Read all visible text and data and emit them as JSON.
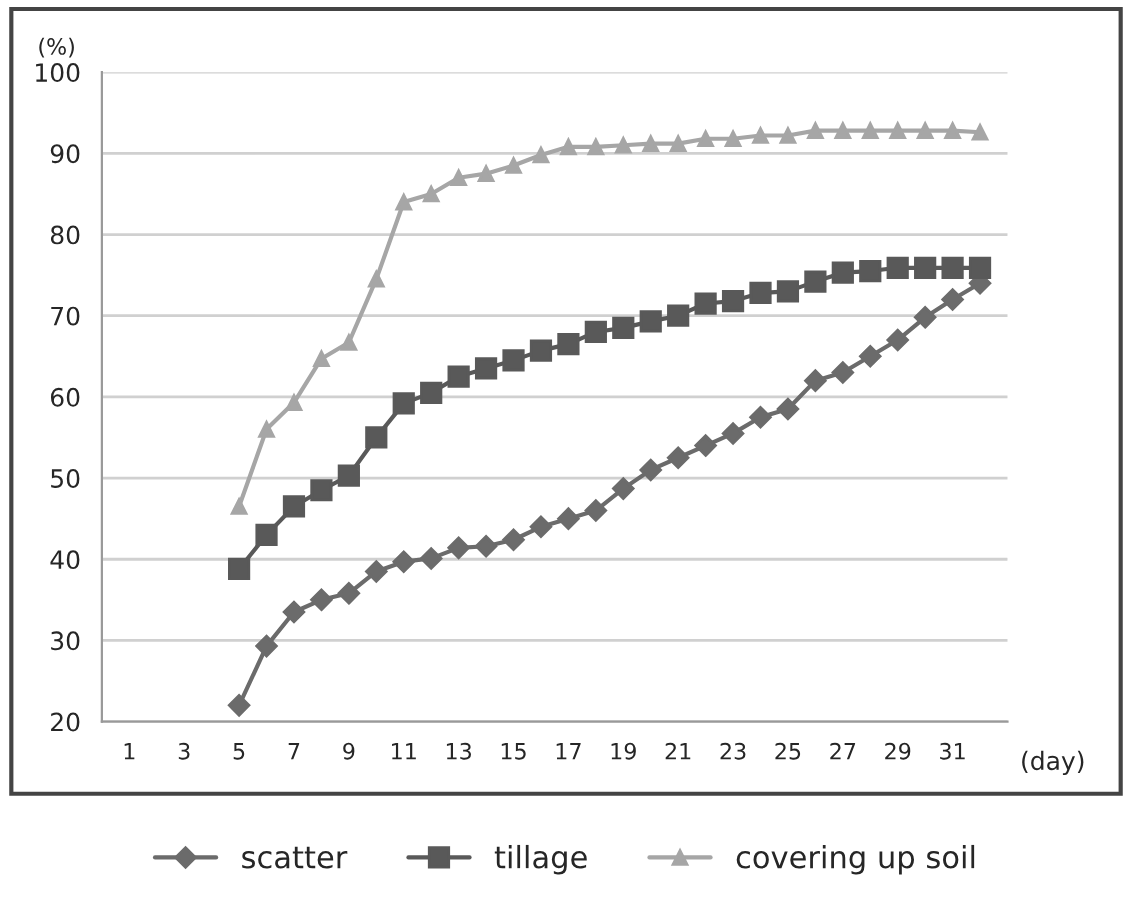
{
  "chart_data": {
    "type": "line",
    "ylabel": "(%)",
    "xlabel": "(day)",
    "categories": [
      "1",
      null,
      "3",
      null,
      "5",
      null,
      "7",
      null,
      "9",
      null,
      "11",
      null,
      "13",
      null,
      "15",
      null,
      "17",
      null,
      "19",
      null,
      "21",
      null,
      "23",
      null,
      "25",
      null,
      "27",
      null,
      "29",
      null,
      "31",
      null
    ],
    "series": [
      {
        "name": "scatter",
        "color": "#6b6b6b",
        "marker": "diamond",
        "values": [
          null,
          null,
          null,
          null,
          22,
          29.3,
          33.5,
          35,
          35.8,
          38.5,
          39.7,
          40.1,
          41.4,
          41.6,
          42.4,
          44,
          45,
          46,
          48.7,
          51,
          52.5,
          54,
          55.5,
          57.5,
          58.5,
          62,
          63,
          65,
          67,
          69.8,
          72,
          74
        ]
      },
      {
        "name": "tillage",
        "color": "#595959",
        "marker": "square",
        "values": [
          null,
          null,
          null,
          null,
          38.8,
          43,
          46.5,
          48.5,
          50.3,
          55,
          59.2,
          60.5,
          62.5,
          63.5,
          64.5,
          65.7,
          66.5,
          68,
          68.5,
          69.3,
          70,
          71.5,
          71.8,
          72.8,
          73,
          74.2,
          75.3,
          75.5,
          75.9,
          75.9,
          75.9,
          75.9
        ]
      },
      {
        "name": "covering up soil",
        "color": "#a6a6a6",
        "marker": "triangle",
        "values": [
          null,
          null,
          null,
          null,
          46.5,
          56,
          59.3,
          64.7,
          66.7,
          74.5,
          84,
          85,
          87,
          87.5,
          88.5,
          89.8,
          90.8,
          90.8,
          91,
          91.2,
          91.2,
          91.8,
          91.8,
          92.2,
          92.2,
          92.8,
          92.8,
          92.8,
          92.8,
          92.8,
          92.8,
          92.6
        ]
      }
    ],
    "ylim": [
      20,
      100
    ],
    "yticks": [
      20,
      30,
      40,
      50,
      60,
      70,
      80,
      90,
      100
    ],
    "grid": "y",
    "legend": "bottom"
  }
}
